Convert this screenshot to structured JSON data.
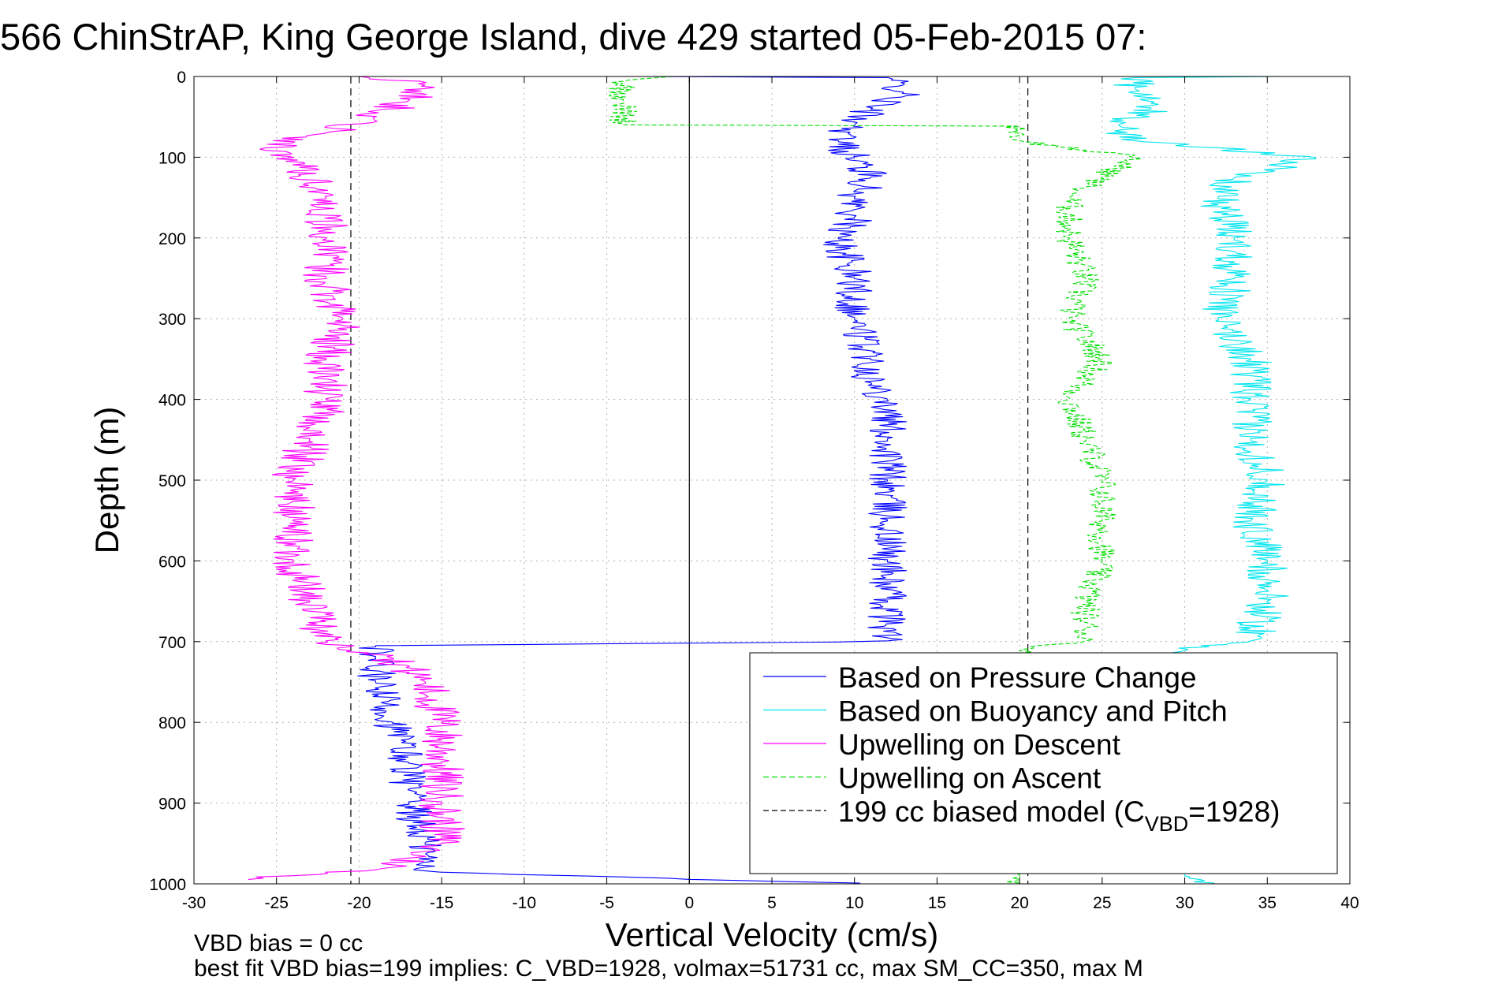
{
  "figure": {
    "title": "566 ChinStrAP, King George Island, dive 429 started 05-Feb-2015 07:",
    "note_1": "VBD bias = 0 cc",
    "note_2": "best fit VBD bias=199 implies: C_VBD=1928, volmax=51731 cc, max SM_CC=350, max M"
  },
  "chart_data": {
    "type": "line",
    "xlabel": "Vertical Velocity (cm/s)",
    "ylabel": "Depth (m)",
    "xlim": [
      -30,
      40
    ],
    "ylim": [
      1000,
      0
    ],
    "y_reversed": true,
    "grid": true,
    "legend_position": "bottom-right",
    "xticks": [
      -30,
      -25,
      -20,
      -15,
      -10,
      -5,
      0,
      5,
      10,
      15,
      20,
      25,
      30,
      35,
      40
    ],
    "yticks": [
      0,
      100,
      200,
      300,
      400,
      500,
      600,
      700,
      800,
      900,
      1000
    ],
    "vertical_lines": [
      {
        "x": 0,
        "style": "solid",
        "color": "#000000"
      },
      {
        "x": -20.5,
        "style": "dashed",
        "color": "#000000"
      },
      {
        "x": 20.5,
        "style": "dashed",
        "color": "#000000"
      }
    ],
    "series": [
      {
        "name": "Based on Pressure Change",
        "color": "#0000ff",
        "style": "solid",
        "noise": 1.2,
        "depth": [
          0,
          1,
          20,
          40,
          60,
          80,
          100,
          125,
          150,
          175,
          200,
          250,
          300,
          350,
          380,
          400,
          450,
          500,
          550,
          600,
          650,
          700,
          705,
          720,
          750,
          800,
          850,
          900,
          950,
          985,
          992,
          997,
          1000
        ],
        "x": [
          -3,
          12,
          13,
          11,
          10,
          9,
          10,
          11,
          10,
          10,
          9,
          10,
          10,
          11,
          11,
          12,
          12,
          12,
          12,
          12,
          12,
          12,
          -19,
          -19,
          -19,
          -18,
          -17,
          -17,
          -16,
          -16,
          -3,
          5,
          13
        ]
      },
      {
        "name": "Based on Buoyancy and Pitch",
        "color": "#00e5ee",
        "style": "solid",
        "noise": 1.3,
        "depth": [
          0,
          1,
          15,
          40,
          60,
          80,
          100,
          125,
          150,
          200,
          250,
          300,
          350,
          400,
          450,
          500,
          550,
          600,
          650,
          700,
          710,
          990,
          995,
          1000
        ],
        "x": [
          36,
          27,
          27,
          28,
          26,
          27,
          38,
          33,
          32,
          33,
          33,
          32,
          34,
          34,
          34,
          35,
          34,
          35,
          35,
          34,
          30,
          30,
          31,
          32
        ]
      },
      {
        "name": "Upwelling on Descent",
        "color": "#ff00ff",
        "style": "solid",
        "noise": 1.4,
        "depth": [
          0,
          10,
          30,
          50,
          70,
          90,
          100,
          150,
          200,
          250,
          300,
          350,
          400,
          450,
          500,
          550,
          600,
          650,
          700,
          720,
          750,
          800,
          850,
          900,
          950,
          980,
          995
        ],
        "x": [
          -20,
          -16,
          -17,
          -19,
          -22,
          -26,
          -24,
          -22,
          -22,
          -22,
          -21,
          -22,
          -22,
          -23,
          -24,
          -24,
          -24,
          -23,
          -22,
          -18,
          -16,
          -15,
          -15,
          -15,
          -15,
          -18,
          -27
        ]
      },
      {
        "name": "Upwelling on Ascent",
        "color": "#00dd00",
        "style": "dashed",
        "noise": 0.9,
        "depth": [
          0,
          5,
          30,
          60,
          61,
          80,
          100,
          125,
          150,
          200,
          250,
          300,
          350,
          400,
          450,
          500,
          550,
          600,
          650,
          700,
          710,
          990,
          995,
          1000
        ],
        "x": [
          -1,
          -4,
          -4,
          -4,
          20,
          20,
          27,
          25,
          23,
          23,
          24,
          23,
          25,
          23,
          24,
          25,
          25,
          25,
          24,
          24,
          20,
          20,
          20,
          20
        ]
      },
      {
        "name": "199 cc biased model (C",
        "name_sub": "VBD",
        "name_suffix": "=1928)",
        "color": "#000000",
        "style": "dashed"
      }
    ]
  }
}
